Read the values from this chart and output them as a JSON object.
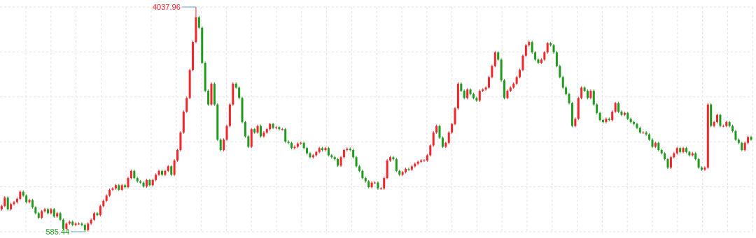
{
  "chart_data": {
    "type": "candlestick",
    "grid": true,
    "annotations": [
      "4037.96",
      "585.44"
    ],
    "categories": [
      null,
      null,
      null,
      null,
      null,
      null,
      null,
      null,
      null,
      null,
      null,
      null,
      null,
      null,
      null,
      null,
      null,
      null,
      null,
      null,
      null,
      null,
      null,
      null,
      null,
      null,
      null,
      null,
      null,
      null,
      null,
      null,
      null,
      null,
      null,
      null,
      null,
      null,
      null,
      null,
      null,
      null,
      null,
      null,
      null,
      null,
      null,
      null,
      null,
      null,
      null,
      null,
      null,
      null,
      null,
      null,
      null,
      null,
      null,
      null,
      null,
      null,
      null,
      null,
      null,
      null,
      null,
      null,
      null,
      null,
      null,
      null,
      null,
      null,
      null,
      null,
      null,
      null,
      null,
      null,
      null,
      null,
      null,
      null,
      null,
      null,
      null,
      null,
      null,
      null,
      null,
      null,
      null,
      null,
      null,
      null,
      null,
      null,
      null,
      null,
      null,
      null,
      null,
      null,
      null,
      null,
      null,
      null,
      null,
      null,
      null,
      null,
      null,
      null,
      null,
      null,
      null,
      null,
      null,
      null,
      null,
      null,
      null,
      null,
      null,
      null,
      null,
      null,
      null,
      null,
      null,
      null,
      null,
      null,
      null,
      null,
      null,
      null,
      null,
      null,
      null,
      null,
      null,
      null,
      null,
      null,
      null,
      null,
      null,
      null,
      null,
      null,
      null,
      null,
      null,
      null,
      null,
      null,
      null,
      null,
      null,
      null,
      null,
      null,
      null,
      null,
      null,
      null,
      null,
      null,
      null,
      null,
      null,
      null,
      null,
      null,
      null,
      null,
      null,
      null,
      null,
      null,
      null,
      null,
      null,
      null,
      null,
      null,
      null,
      null,
      null,
      null,
      null,
      null,
      null,
      null,
      null,
      null,
      null,
      null,
      null,
      null,
      null,
      null,
      null,
      null,
      null,
      null,
      null,
      null,
      null,
      null,
      null,
      null,
      null,
      null,
      null,
      null,
      null,
      null,
      null,
      null,
      null,
      null,
      null,
      null,
      null,
      null,
      null,
      null,
      null,
      null,
      null,
      null,
      null,
      null,
      null,
      null,
      null,
      null,
      null,
      null,
      null,
      null
    ],
    "ohlc": [
      [
        930,
        1000,
        910,
        980
      ],
      [
        980,
        1130,
        960,
        1110
      ],
      [
        1110,
        1130,
        910,
        930
      ],
      [
        930,
        1030,
        910,
        1010
      ],
      [
        1010,
        1060,
        990,
        1040
      ],
      [
        1040,
        1110,
        1020,
        1090
      ],
      [
        1090,
        1220,
        1070,
        1200
      ],
      [
        1200,
        1220,
        1120,
        1140
      ],
      [
        1140,
        1160,
        1020,
        1040
      ],
      [
        1040,
        1090,
        1020,
        1070
      ],
      [
        1070,
        1090,
        940,
        960
      ],
      [
        960,
        980,
        850,
        870
      ],
      [
        870,
        890,
        780,
        800
      ],
      [
        800,
        920,
        780,
        900
      ],
      [
        900,
        950,
        880,
        930
      ],
      [
        930,
        950,
        850,
        870
      ],
      [
        870,
        950,
        850,
        930
      ],
      [
        930,
        950,
        800,
        820
      ],
      [
        820,
        890,
        800,
        870
      ],
      [
        870,
        890,
        750,
        770
      ],
      [
        770,
        790,
        610,
        630
      ],
      [
        630,
        730,
        610,
        710
      ],
      [
        710,
        760,
        690,
        740
      ],
      [
        740,
        760,
        670,
        690
      ],
      [
        690,
        730,
        670,
        710
      ],
      [
        710,
        730,
        690,
        710
      ],
      [
        710,
        730,
        670,
        690
      ],
      [
        690,
        710,
        585.44,
        610
      ],
      [
        610,
        730,
        590,
        710
      ],
      [
        710,
        790,
        690,
        770
      ],
      [
        770,
        890,
        750,
        870
      ],
      [
        870,
        890,
        820,
        840
      ],
      [
        840,
        1000,
        820,
        980
      ],
      [
        980,
        1080,
        960,
        1060
      ],
      [
        1060,
        1160,
        1040,
        1140
      ],
      [
        1140,
        1250,
        1120,
        1230
      ],
      [
        1230,
        1270,
        1210,
        1250
      ],
      [
        1250,
        1320,
        1230,
        1300
      ],
      [
        1300,
        1320,
        1210,
        1230
      ],
      [
        1230,
        1320,
        1210,
        1300
      ],
      [
        1300,
        1320,
        1250,
        1270
      ],
      [
        1270,
        1430,
        1250,
        1410
      ],
      [
        1410,
        1540,
        1390,
        1520
      ],
      [
        1520,
        1540,
        1390,
        1410
      ],
      [
        1410,
        1430,
        1340,
        1360
      ],
      [
        1360,
        1380,
        1320,
        1340
      ],
      [
        1340,
        1360,
        1260,
        1280
      ],
      [
        1280,
        1400,
        1260,
        1380
      ],
      [
        1380,
        1400,
        1280,
        1300
      ],
      [
        1300,
        1400,
        1280,
        1380
      ],
      [
        1380,
        1480,
        1360,
        1460
      ],
      [
        1460,
        1540,
        1440,
        1520
      ],
      [
        1520,
        1540,
        1440,
        1460
      ],
      [
        1460,
        1540,
        1440,
        1520
      ],
      [
        1520,
        1610,
        1500,
        1590
      ],
      [
        1590,
        1610,
        1440,
        1460
      ],
      [
        1460,
        1700,
        1440,
        1680
      ],
      [
        1680,
        1860,
        1660,
        1840
      ],
      [
        1840,
        2130,
        1820,
        2110
      ],
      [
        2110,
        2450,
        2090,
        2430
      ],
      [
        2430,
        2660,
        2410,
        2640
      ],
      [
        2640,
        3090,
        2620,
        3070
      ],
      [
        3070,
        3520,
        3050,
        3500
      ],
      [
        3500,
        4037.96,
        3480,
        3880
      ],
      [
        3880,
        3900,
        3700,
        3720
      ],
      [
        3720,
        3740,
        3160,
        3180
      ],
      [
        3180,
        3200,
        2730,
        2750
      ],
      [
        2750,
        2770,
        2520,
        2540
      ],
      [
        2540,
        2880,
        2520,
        2860
      ],
      [
        2860,
        2880,
        2520,
        2540
      ],
      [
        2540,
        2560,
        1980,
        2000
      ],
      [
        2000,
        2020,
        1820,
        1840
      ],
      [
        1840,
        2020,
        1820,
        2000
      ],
      [
        2000,
        2230,
        1980,
        2210
      ],
      [
        2210,
        2560,
        2190,
        2540
      ],
      [
        2540,
        2880,
        2520,
        2860
      ],
      [
        2860,
        2880,
        2780,
        2800
      ],
      [
        2800,
        2820,
        2620,
        2640
      ],
      [
        2640,
        2660,
        2250,
        2270
      ],
      [
        2270,
        2290,
        2030,
        2050
      ],
      [
        2050,
        2070,
        1870,
        1890
      ],
      [
        1890,
        2180,
        1870,
        2160
      ],
      [
        2160,
        2180,
        2090,
        2110
      ],
      [
        2110,
        2230,
        2090,
        2210
      ],
      [
        2210,
        2230,
        2030,
        2050
      ],
      [
        2050,
        2130,
        2030,
        2110
      ],
      [
        2110,
        2180,
        2090,
        2160
      ],
      [
        2160,
        2260,
        2140,
        2240
      ],
      [
        2240,
        2260,
        2160,
        2180
      ],
      [
        2180,
        2210,
        2160,
        2190
      ],
      [
        2190,
        2210,
        2140,
        2160
      ],
      [
        2160,
        2180,
        2140,
        2160
      ],
      [
        2160,
        2180,
        1950,
        1970
      ],
      [
        1970,
        1990,
        1930,
        1950
      ],
      [
        1950,
        1970,
        1850,
        1870
      ],
      [
        1870,
        1910,
        1850,
        1890
      ],
      [
        1890,
        1960,
        1870,
        1940
      ],
      [
        1940,
        1970,
        1920,
        1950
      ],
      [
        1950,
        1970,
        1850,
        1870
      ],
      [
        1870,
        1890,
        1770,
        1790
      ],
      [
        1790,
        1810,
        1710,
        1730
      ],
      [
        1730,
        1780,
        1710,
        1760
      ],
      [
        1760,
        1830,
        1740,
        1810
      ],
      [
        1810,
        1890,
        1790,
        1870
      ],
      [
        1870,
        1890,
        1820,
        1840
      ],
      [
        1840,
        1890,
        1820,
        1870
      ],
      [
        1870,
        1890,
        1740,
        1760
      ],
      [
        1760,
        1780,
        1710,
        1730
      ],
      [
        1730,
        1750,
        1680,
        1700
      ],
      [
        1700,
        1720,
        1580,
        1600
      ],
      [
        1600,
        1750,
        1580,
        1730
      ],
      [
        1730,
        1860,
        1710,
        1840
      ],
      [
        1840,
        1880,
        1820,
        1860
      ],
      [
        1860,
        1880,
        1820,
        1840
      ],
      [
        1840,
        1860,
        1710,
        1730
      ],
      [
        1730,
        1750,
        1570,
        1590
      ],
      [
        1590,
        1610,
        1500,
        1520
      ],
      [
        1520,
        1540,
        1390,
        1410
      ],
      [
        1410,
        1430,
        1340,
        1360
      ],
      [
        1360,
        1380,
        1250,
        1270
      ],
      [
        1270,
        1360,
        1250,
        1340
      ],
      [
        1340,
        1360,
        1320,
        1340
      ],
      [
        1340,
        1360,
        1230,
        1250
      ],
      [
        1250,
        1270,
        1230,
        1250
      ],
      [
        1250,
        1430,
        1230,
        1410
      ],
      [
        1410,
        1700,
        1390,
        1680
      ],
      [
        1680,
        1750,
        1660,
        1730
      ],
      [
        1730,
        1750,
        1680,
        1700
      ],
      [
        1700,
        1720,
        1500,
        1520
      ],
      [
        1520,
        1540,
        1440,
        1460
      ],
      [
        1460,
        1520,
        1440,
        1500
      ],
      [
        1500,
        1570,
        1480,
        1550
      ],
      [
        1550,
        1570,
        1520,
        1540
      ],
      [
        1540,
        1610,
        1520,
        1590
      ],
      [
        1590,
        1650,
        1570,
        1630
      ],
      [
        1630,
        1680,
        1610,
        1660
      ],
      [
        1660,
        1700,
        1640,
        1680
      ],
      [
        1680,
        1700,
        1660,
        1680
      ],
      [
        1680,
        1780,
        1660,
        1760
      ],
      [
        1760,
        1930,
        1740,
        1910
      ],
      [
        1910,
        2130,
        1890,
        2110
      ],
      [
        2110,
        2230,
        2090,
        2210
      ],
      [
        2210,
        2230,
        2010,
        2030
      ],
      [
        2030,
        2050,
        1870,
        1890
      ],
      [
        1890,
        1970,
        1870,
        1950
      ],
      [
        1950,
        2130,
        1930,
        2110
      ],
      [
        2110,
        2260,
        2090,
        2240
      ],
      [
        2240,
        2500,
        2220,
        2480
      ],
      [
        2480,
        2880,
        2460,
        2860
      ],
      [
        2860,
        2880,
        2730,
        2750
      ],
      [
        2750,
        2770,
        2620,
        2640
      ],
      [
        2640,
        2790,
        2620,
        2770
      ],
      [
        2770,
        2790,
        2680,
        2700
      ],
      [
        2700,
        2720,
        2620,
        2640
      ],
      [
        2640,
        2660,
        2580,
        2600
      ],
      [
        2600,
        2770,
        2580,
        2750
      ],
      [
        2750,
        2790,
        2730,
        2770
      ],
      [
        2770,
        2820,
        2750,
        2800
      ],
      [
        2800,
        2980,
        2780,
        2960
      ],
      [
        2960,
        3150,
        2940,
        3130
      ],
      [
        3130,
        3360,
        3110,
        3340
      ],
      [
        3340,
        3360,
        3210,
        3230
      ],
      [
        3230,
        3250,
        2890,
        2910
      ],
      [
        2910,
        2930,
        2620,
        2640
      ],
      [
        2640,
        2770,
        2620,
        2750
      ],
      [
        2750,
        2820,
        2730,
        2800
      ],
      [
        2800,
        2880,
        2780,
        2860
      ],
      [
        2860,
        2980,
        2840,
        2960
      ],
      [
        2960,
        3090,
        2940,
        3070
      ],
      [
        3070,
        3310,
        3050,
        3290
      ],
      [
        3290,
        3470,
        3270,
        3450
      ],
      [
        3450,
        3520,
        3430,
        3500
      ],
      [
        3500,
        3520,
        3320,
        3340
      ],
      [
        3340,
        3360,
        3210,
        3230
      ],
      [
        3230,
        3250,
        3160,
        3180
      ],
      [
        3180,
        3250,
        3160,
        3230
      ],
      [
        3230,
        3360,
        3210,
        3340
      ],
      [
        3340,
        3500,
        3320,
        3480
      ],
      [
        3480,
        3500,
        3430,
        3450
      ],
      [
        3450,
        3470,
        3320,
        3340
      ],
      [
        3340,
        3360,
        3110,
        3130
      ],
      [
        3130,
        3150,
        2940,
        2960
      ],
      [
        2960,
        2980,
        2780,
        2800
      ],
      [
        2800,
        2820,
        2680,
        2700
      ],
      [
        2700,
        2720,
        2540,
        2560
      ],
      [
        2560,
        2580,
        2190,
        2210
      ],
      [
        2210,
        2340,
        2190,
        2320
      ],
      [
        2320,
        2660,
        2300,
        2640
      ],
      [
        2640,
        2820,
        2620,
        2800
      ],
      [
        2800,
        2820,
        2730,
        2750
      ],
      [
        2750,
        2770,
        2620,
        2640
      ],
      [
        2640,
        2770,
        2620,
        2750
      ],
      [
        2750,
        2770,
        2520,
        2540
      ],
      [
        2540,
        2560,
        2390,
        2410
      ],
      [
        2410,
        2430,
        2280,
        2300
      ],
      [
        2300,
        2320,
        2250,
        2270
      ],
      [
        2270,
        2340,
        2250,
        2320
      ],
      [
        2320,
        2340,
        2280,
        2300
      ],
      [
        2300,
        2450,
        2280,
        2430
      ],
      [
        2430,
        2580,
        2410,
        2560
      ],
      [
        2560,
        2580,
        2410,
        2430
      ],
      [
        2430,
        2450,
        2360,
        2380
      ],
      [
        2380,
        2430,
        2360,
        2410
      ],
      [
        2410,
        2430,
        2300,
        2320
      ],
      [
        2320,
        2340,
        2250,
        2270
      ],
      [
        2270,
        2290,
        2220,
        2240
      ],
      [
        2240,
        2260,
        2160,
        2180
      ],
      [
        2180,
        2200,
        2090,
        2110
      ],
      [
        2110,
        2130,
        2090,
        2110
      ],
      [
        2110,
        2130,
        2060,
        2080
      ],
      [
        2080,
        2100,
        1980,
        2000
      ],
      [
        2000,
        2020,
        1870,
        1890
      ],
      [
        1890,
        1970,
        1870,
        1950
      ],
      [
        1950,
        1970,
        1820,
        1840
      ],
      [
        1840,
        1860,
        1770,
        1790
      ],
      [
        1790,
        1810,
        1680,
        1700
      ],
      [
        1700,
        1720,
        1550,
        1570
      ],
      [
        1570,
        1750,
        1550,
        1730
      ],
      [
        1730,
        1810,
        1710,
        1790
      ],
      [
        1790,
        1890,
        1770,
        1870
      ],
      [
        1870,
        1890,
        1790,
        1810
      ],
      [
        1810,
        1890,
        1790,
        1870
      ],
      [
        1870,
        1890,
        1790,
        1810
      ],
      [
        1810,
        1830,
        1740,
        1760
      ],
      [
        1760,
        1810,
        1740,
        1790
      ],
      [
        1790,
        1810,
        1680,
        1700
      ],
      [
        1700,
        1720,
        1550,
        1570
      ],
      [
        1570,
        1590,
        1520,
        1540
      ],
      [
        1540,
        1590,
        1520,
        1570
      ],
      [
        1570,
        2560,
        1550,
        2540
      ],
      [
        2540,
        2560,
        2190,
        2210
      ],
      [
        2210,
        2290,
        2190,
        2270
      ],
      [
        2270,
        2400,
        2250,
        2380
      ],
      [
        2380,
        2400,
        2190,
        2210
      ],
      [
        2210,
        2230,
        2190,
        2210
      ],
      [
        2210,
        2290,
        2190,
        2270
      ],
      [
        2270,
        2290,
        2190,
        2210
      ],
      [
        2210,
        2230,
        2110,
        2130
      ],
      [
        2130,
        2150,
        1980,
        2000
      ],
      [
        2000,
        2020,
        1930,
        1950
      ],
      [
        1950,
        1970,
        1820,
        1840
      ],
      [
        1840,
        1970,
        1820,
        1950
      ],
      [
        1950,
        2060,
        1930,
        2040
      ],
      [
        2040,
        2060,
        1980,
        2000
      ]
    ]
  }
}
